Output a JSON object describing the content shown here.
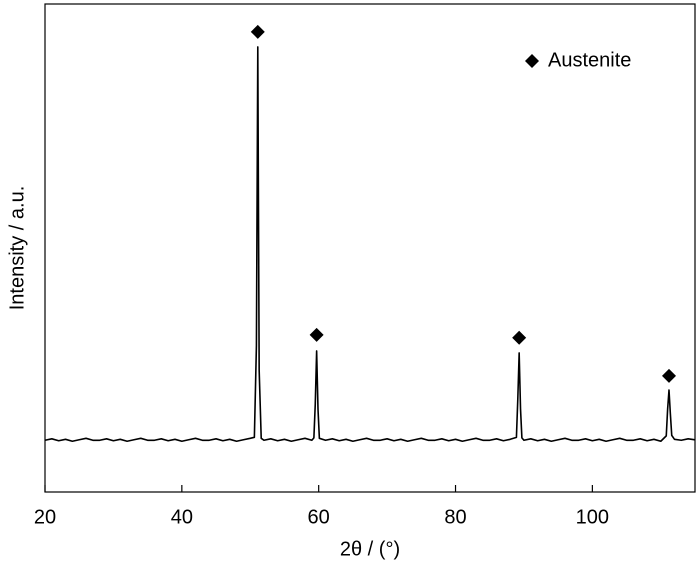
{
  "chart_data": {
    "type": "line",
    "xlabel": "2θ / (°)",
    "ylabel": "Intensity / a.u.",
    "color": "#000000",
    "xlim": [
      20,
      115
    ],
    "ylim": [
      0,
      100
    ],
    "xticks": [
      20,
      40,
      60,
      80,
      100
    ],
    "legend": "upper right",
    "x": [
      20,
      21,
      22,
      23,
      24,
      25,
      26,
      27,
      28,
      29,
      30,
      31,
      32,
      33,
      34,
      35,
      36,
      37,
      38,
      39,
      40,
      41,
      42,
      43,
      44,
      45,
      46,
      47,
      48,
      49,
      50,
      50.6,
      50.9,
      51.1,
      51.3,
      51.6,
      52,
      53,
      54,
      55,
      56,
      57,
      58,
      59,
      59.3,
      59.5,
      59.7,
      59.9,
      60.1,
      61,
      62,
      63,
      64,
      65,
      66,
      67,
      68,
      69,
      70,
      71,
      72,
      73,
      74,
      75,
      76,
      77,
      78,
      79,
      80,
      81,
      82,
      83,
      84,
      85,
      86,
      87,
      88,
      88.9,
      89.1,
      89.3,
      89.5,
      89.7,
      90,
      91,
      92,
      93,
      94,
      95,
      96,
      97,
      98,
      99,
      100,
      101,
      102,
      103,
      104,
      105,
      106,
      107,
      108,
      109,
      110,
      110.8,
      111.0,
      111.2,
      111.4,
      111.6,
      112,
      113,
      114,
      115
    ],
    "values": [
      10.6,
      10.9,
      10.5,
      10.8,
      10.4,
      10.7,
      11.0,
      10.6,
      10.6,
      10.9,
      10.5,
      10.8,
      10.4,
      10.7,
      11.0,
      10.6,
      10.6,
      10.9,
      10.5,
      10.8,
      10.4,
      10.7,
      11.0,
      10.6,
      10.6,
      10.9,
      10.5,
      10.8,
      10.4,
      10.7,
      11.0,
      11.2,
      30,
      91.2,
      25,
      11.0,
      10.6,
      10.9,
      10.5,
      10.8,
      10.4,
      10.7,
      11.0,
      10.6,
      11.1,
      18,
      28.9,
      17,
      11.0,
      10.6,
      10.9,
      10.5,
      10.8,
      10.4,
      10.7,
      11.0,
      10.6,
      10.6,
      10.9,
      10.5,
      10.8,
      10.4,
      10.7,
      11.0,
      10.6,
      10.6,
      10.9,
      10.5,
      10.8,
      10.4,
      10.7,
      11.0,
      10.6,
      10.6,
      10.9,
      10.5,
      10.8,
      11.2,
      19,
      28.5,
      17,
      11.1,
      10.6,
      10.9,
      10.5,
      10.8,
      10.4,
      10.7,
      11.0,
      10.6,
      10.6,
      10.9,
      10.5,
      10.8,
      10.4,
      10.7,
      11.0,
      10.6,
      10.6,
      10.9,
      10.5,
      10.8,
      10.4,
      11.5,
      17,
      20.9,
      16,
      11.6,
      10.8,
      10.6,
      10.9,
      10.7
    ],
    "markers": {
      "type": "scatter",
      "name": "Austenite",
      "color": "#000000",
      "marker": "diamond",
      "x": [
        51.1,
        59.7,
        89.3,
        111.2
      ],
      "values": [
        94.3,
        32.2,
        31.6,
        23.8
      ]
    }
  }
}
